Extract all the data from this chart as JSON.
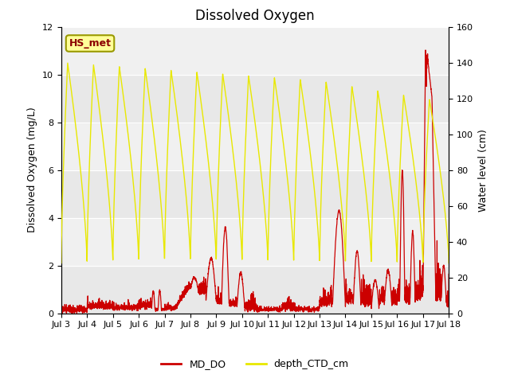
{
  "title": "Dissolved Oxygen",
  "ylabel_left": "Dissolved Oxygen (mg/L)",
  "ylabel_right": "Water level (cm)",
  "ylim_left": [
    0,
    12
  ],
  "ylim_right": [
    0,
    160
  ],
  "xlim_days": [
    0,
    15
  ],
  "x_tick_labels": [
    "Jul 3",
    "Jul 4",
    "Jul 5",
    "Jul 6",
    "Jul 7",
    "Jul 8",
    "Jul 9",
    "Jul 10",
    "Jul 11",
    "Jul 12",
    "Jul 13",
    "Jul 14",
    "Jul 15",
    "Jul 16",
    "Jul 17",
    "Jul 18"
  ],
  "color_red": "#cc0000",
  "color_yellow": "#e8e800",
  "legend_label_red": "MD_DO",
  "legend_label_yellow": "depth_CTD_cm",
  "annotation_text": "HS_met",
  "annotation_color": "#8b0000",
  "annotation_bg": "#ffff99",
  "annotation_edge": "#999900",
  "bg_color": "#e8e8e8",
  "band_color": "#d0d0d0",
  "white_band": "#f0f0f0",
  "title_fontsize": 12,
  "axis_fontsize": 9,
  "tick_fontsize": 8
}
